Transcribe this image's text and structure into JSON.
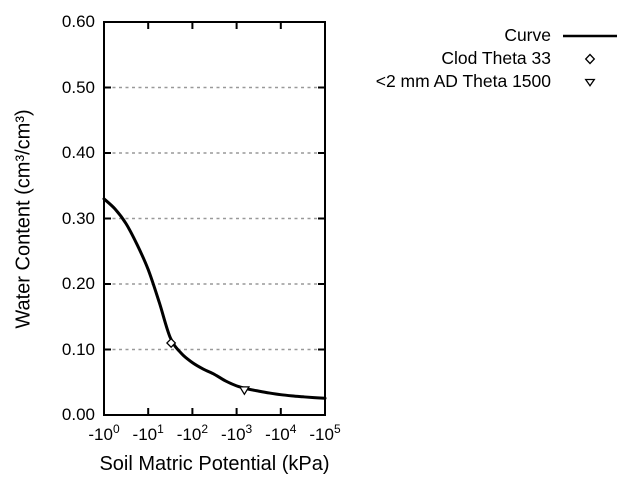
{
  "chart_data": {
    "type": "line",
    "title": "",
    "xlabel": "Soil Matric Potential (kPa)",
    "ylabel": "Water Content (cm³/cm³)",
    "x_scale": "log10 of negative kPa, axis runs -10^0 to -10^5",
    "ylim": [
      0.0,
      0.6
    ],
    "grid": "horizontal-dashed",
    "grid_y": [
      0.1,
      0.2,
      0.3,
      0.4,
      0.5
    ],
    "x_ticks": [
      {
        "base": "-10",
        "exp": "0",
        "decade": 0
      },
      {
        "base": "-10",
        "exp": "1",
        "decade": 1
      },
      {
        "base": "-10",
        "exp": "2",
        "decade": 2
      },
      {
        "base": "-10",
        "exp": "3",
        "decade": 3
      },
      {
        "base": "-10",
        "exp": "4",
        "decade": 4
      },
      {
        "base": "-10",
        "exp": "5",
        "decade": 5
      }
    ],
    "y_ticks": [
      {
        "value": 0.0,
        "label": "0.00"
      },
      {
        "value": 0.1,
        "label": "0.10"
      },
      {
        "value": 0.2,
        "label": "0.20"
      },
      {
        "value": 0.3,
        "label": "0.30"
      },
      {
        "value": 0.4,
        "label": "0.40"
      },
      {
        "value": 0.5,
        "label": "0.50"
      },
      {
        "value": 0.6,
        "label": "0.60"
      }
    ],
    "series": [
      {
        "name": "Curve",
        "type": "line",
        "color": "#000000",
        "x_units": "log10(-kPa)",
        "points": [
          [
            0.0,
            0.33
          ],
          [
            0.25,
            0.3145
          ],
          [
            0.5,
            0.292
          ],
          [
            0.75,
            0.26
          ],
          [
            1.0,
            0.222
          ],
          [
            1.25,
            0.172
          ],
          [
            1.5,
            0.118
          ],
          [
            1.75,
            0.094
          ],
          [
            2.0,
            0.08
          ],
          [
            2.25,
            0.07
          ],
          [
            2.5,
            0.062
          ],
          [
            2.75,
            0.052
          ],
          [
            3.0,
            0.0445
          ],
          [
            3.25,
            0.0398
          ],
          [
            3.5,
            0.0365
          ],
          [
            3.75,
            0.0335
          ],
          [
            4.0,
            0.031
          ],
          [
            4.25,
            0.0292
          ],
          [
            4.5,
            0.0278
          ],
          [
            4.75,
            0.0265
          ],
          [
            5.0,
            0.0255
          ]
        ]
      },
      {
        "name": "Clod Theta 33",
        "type": "scatter",
        "marker": "diamond-open",
        "color": "#000000",
        "points": [
          {
            "x_kpa": -33,
            "theta": 0.11
          }
        ]
      },
      {
        "name": "<2 mm AD Theta 1500",
        "type": "scatter",
        "marker": "triangle-down-open",
        "color": "#000000",
        "points": [
          {
            "x_kpa": -1500,
            "theta": 0.038
          }
        ]
      }
    ],
    "legend": {
      "position": "top-right-outside"
    },
    "colors": {
      "axis": "#000000",
      "grid": "#999999",
      "background": "#ffffff",
      "text": "#000000"
    }
  }
}
